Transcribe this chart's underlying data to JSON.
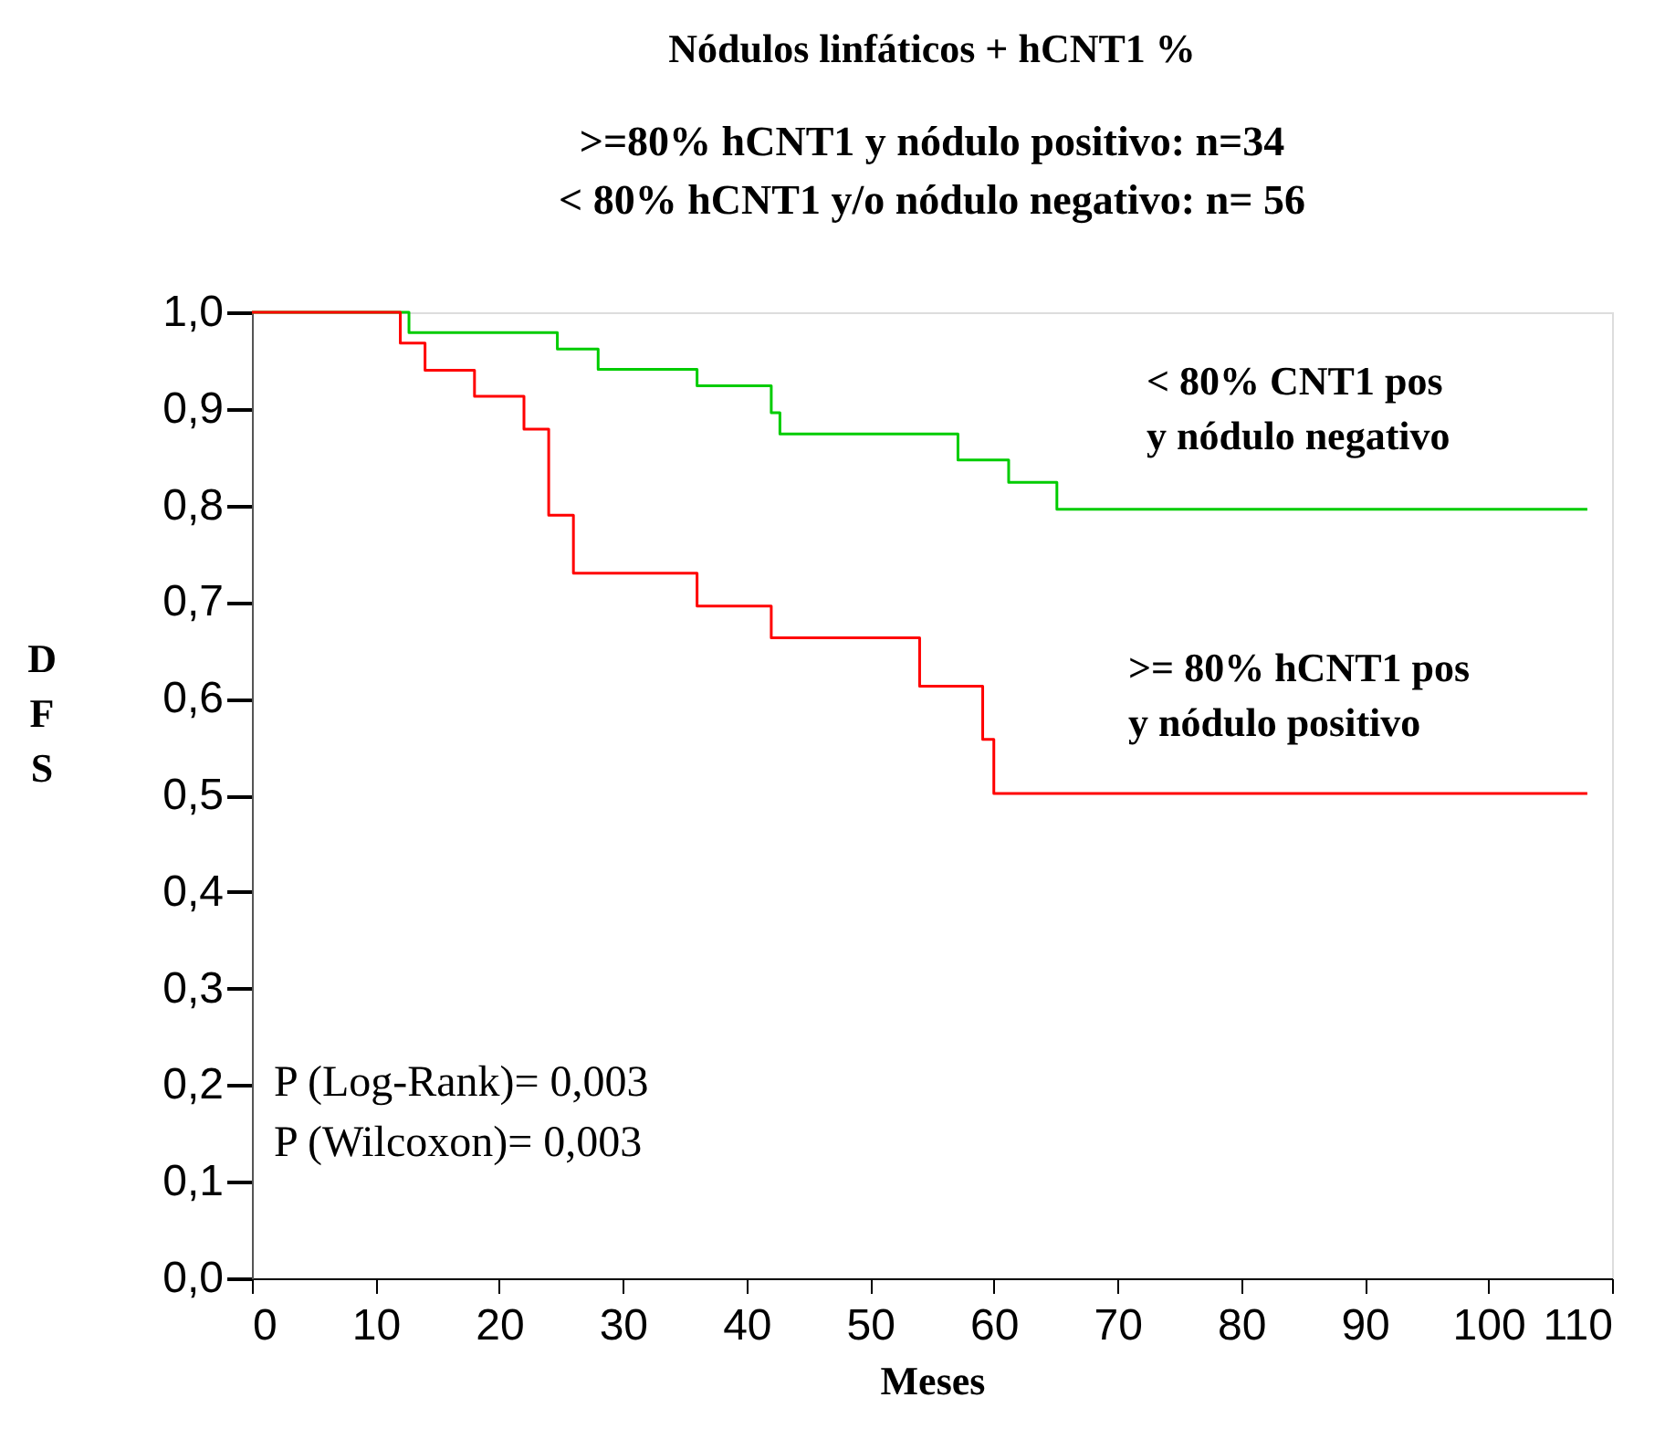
{
  "chart_data": {
    "type": "step",
    "title": "Nódulos linfáticos + hCNT1 %",
    "subtitle": ">=80% hCNT1 y nódulo positivo: n=34\n< 80% hCNT1 y/o nódulo negativo: n= 56",
    "xlabel": "Meses",
    "ylabel": "D\nF\nS",
    "xlim": [
      0,
      110
    ],
    "xticks": [
      0,
      10,
      20,
      30,
      40,
      50,
      60,
      70,
      80,
      90,
      100,
      110
    ],
    "ylim": [
      0,
      1
    ],
    "yticks": [
      {
        "value": 0,
        "label": "0,0"
      },
      {
        "value": 0.1,
        "label": "0,1"
      },
      {
        "value": 0.2,
        "label": "0,2"
      },
      {
        "value": 0.3,
        "label": "0,3"
      },
      {
        "value": 0.4,
        "label": "0,4"
      },
      {
        "value": 0.5,
        "label": "0,5"
      },
      {
        "value": 0.6,
        "label": "0,6"
      },
      {
        "value": 0.7,
        "label": "0,7"
      },
      {
        "value": 0.8,
        "label": "0,8"
      },
      {
        "value": 0.9,
        "label": "0,9"
      },
      {
        "value": 1,
        "label": "1,0"
      }
    ],
    "grid": false,
    "legend": false,
    "marker": "none",
    "line_style": "solid",
    "series": [
      {
        "name": "< 80% CNT1 pos\ny nódulo negativo",
        "color": "#00cc00",
        "x": [
          0,
          12.7,
          24.7,
          28,
          36,
          42,
          42.7,
          57.1,
          61.2,
          65.1,
          108
        ],
        "values": [
          1,
          0.979,
          0.962,
          0.941,
          0.924,
          0.896,
          0.874,
          0.847,
          0.824,
          0.796,
          0.796
        ]
      },
      {
        "name": ">= 80% hCNT1 pos\ny nódulo positivo",
        "color": "#ff0000",
        "x": [
          0,
          12,
          14,
          18,
          22,
          24,
          26,
          36,
          42,
          54,
          59.1,
          60,
          108
        ],
        "values": [
          1,
          0.968,
          0.94,
          0.913,
          0.879,
          0.79,
          0.73,
          0.696,
          0.663,
          0.613,
          0.558,
          0.502,
          0.502
        ]
      }
    ],
    "annotations": [
      "P (Log-Rank)= 0,003",
      "P (Wilcoxon)= 0,003"
    ]
  }
}
